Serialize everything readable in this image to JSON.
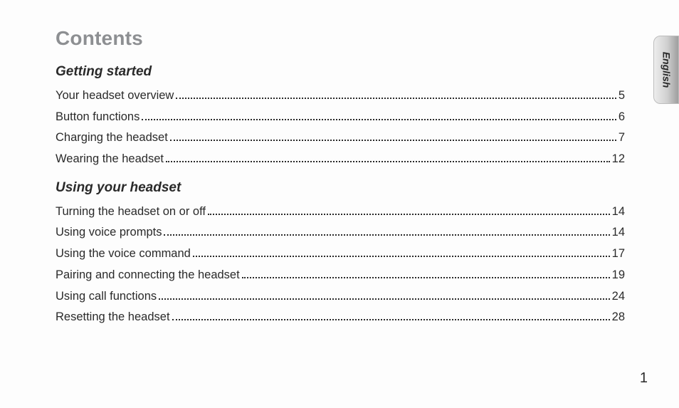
{
  "title": "Contents",
  "langTab": "English",
  "pageNumber": "1",
  "sections": [
    {
      "heading": "Getting started",
      "entries": [
        {
          "label": "Your headset overview",
          "page": "5"
        },
        {
          "label": "Button functions",
          "page": "6"
        },
        {
          "label": "Charging the headset",
          "page": "7"
        },
        {
          "label": "Wearing the headset",
          "page": "12"
        }
      ]
    },
    {
      "heading": "Using your headset",
      "entries": [
        {
          "label": "Turning the headset on or off",
          "page": "14"
        },
        {
          "label": "Using voice prompts",
          "page": "14"
        },
        {
          "label": "Using the voice command",
          "page": "17"
        },
        {
          "label": "Pairing and connecting the headset",
          "page": "19"
        },
        {
          "label": "Using call functions",
          "page": "24"
        },
        {
          "label": "Resetting the headset",
          "page": "28"
        }
      ]
    }
  ]
}
